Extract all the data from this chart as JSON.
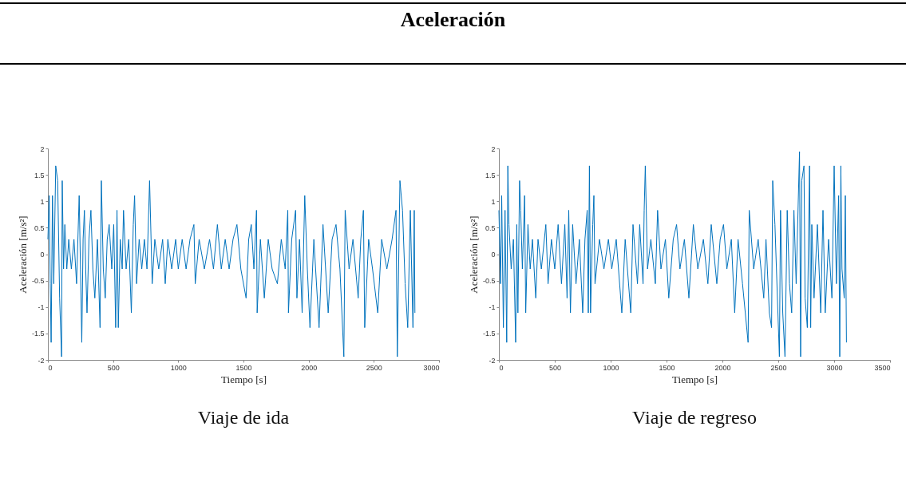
{
  "chart_data": [
    {
      "type": "line",
      "title": "Aceleración",
      "xlabel": "Tiempo [s]",
      "ylabel": "Aceleración [m/s²]",
      "annotations": [
        "Viaje de ida"
      ],
      "xlim": [
        0,
        3000
      ],
      "xticks": [
        0,
        500,
        1000,
        1500,
        2000,
        2500,
        3000
      ],
      "ylim": [
        -2,
        2
      ],
      "yticks": [
        -2,
        -1.5,
        -1,
        -0.5,
        0,
        0.5,
        1,
        1.5,
        2
      ],
      "series": [
        {
          "color": "#0072bd",
          "x": [
            0,
            10,
            18,
            25,
            35,
            45,
            60,
            75,
            90,
            105,
            110,
            120,
            130,
            145,
            160,
            180,
            200,
            220,
            240,
            250,
            260,
            270,
            280,
            290,
            300,
            315,
            330,
            345,
            360,
            380,
            400,
            410,
            425,
            440,
            455,
            470,
            490,
            505,
            520,
            530,
            540,
            555,
            570,
            580,
            600,
            620,
            640,
            655,
            665,
            680,
            700,
            720,
            740,
            760,
            780,
            800,
            820,
            850,
            880,
            900,
            920,
            950,
            980,
            1000,
            1030,
            1060,
            1090,
            1120,
            1130,
            1160,
            1200,
            1240,
            1270,
            1300,
            1330,
            1360,
            1390,
            1420,
            1450,
            1480,
            1520,
            1540,
            1560,
            1580,
            1600,
            1605,
            1630,
            1660,
            1690,
            1720,
            1760,
            1790,
            1820,
            1840,
            1845,
            1870,
            1900,
            1910,
            1930,
            1950,
            1970,
            1990,
            2010,
            2040,
            2080,
            2110,
            2150,
            2180,
            2210,
            2240,
            2270,
            2280,
            2310,
            2340,
            2380,
            2400,
            2420,
            2430,
            2460,
            2490,
            2530,
            2560,
            2600,
            2640,
            2670,
            2680,
            2700,
            2720,
            2740,
            2760,
            2780,
            2800,
            2810,
            2815
          ],
          "values": [
            0.28,
            1.11,
            -0.56,
            -1.67,
            1.11,
            -0.56,
            1.67,
            1.39,
            -0.83,
            -1.94,
            1.39,
            -0.28,
            0.56,
            -0.28,
            0.28,
            -0.28,
            0.28,
            -0.56,
            1.11,
            -0.28,
            -1.67,
            0.28,
            0.83,
            -0.28,
            -1.11,
            0.28,
            0.83,
            -0.28,
            -0.83,
            0.28,
            -1.39,
            1.39,
            -0.28,
            -0.83,
            0.28,
            0.56,
            -0.28,
            0.56,
            -1.39,
            0.83,
            -1.39,
            0.28,
            -0.28,
            0.83,
            -0.28,
            0.28,
            -1.11,
            0.56,
            1.11,
            -0.56,
            0.28,
            -0.28,
            0.28,
            -0.28,
            1.39,
            -0.56,
            0.28,
            -0.28,
            0.28,
            -0.56,
            0.28,
            -0.28,
            0.28,
            -0.28,
            0.28,
            -0.28,
            0.28,
            0.56,
            -0.56,
            0.28,
            -0.28,
            0.28,
            -0.28,
            0.56,
            -0.28,
            0.28,
            -0.28,
            0.28,
            0.56,
            -0.28,
            -0.83,
            0.28,
            0.56,
            -0.28,
            0.83,
            -1.11,
            0.28,
            -0.83,
            0.28,
            -0.28,
            -0.56,
            0.28,
            -0.28,
            0.83,
            -1.11,
            0.28,
            0.83,
            -0.83,
            0.28,
            -1.11,
            1.11,
            -0.28,
            -1.39,
            0.28,
            -1.39,
            0.56,
            -1.11,
            0.28,
            0.56,
            -0.28,
            -1.94,
            0.83,
            -0.28,
            0.28,
            -0.83,
            0.28,
            0.83,
            -1.39,
            0.28,
            -0.28,
            -1.11,
            0.28,
            -0.28,
            0.28,
            0.83,
            -1.94,
            1.39,
            0.83,
            -0.56,
            -1.39,
            0.83,
            -1.39,
            0.83,
            -1.11
          ]
        }
      ]
    },
    {
      "type": "line",
      "xlabel": "Tiempo [s]",
      "ylabel": "Aceleración [m/s²]",
      "annotations": [
        "Viaje de regreso"
      ],
      "xlim": [
        0,
        3500
      ],
      "xticks": [
        0,
        500,
        1000,
        1500,
        2000,
        2500,
        3000,
        3500
      ],
      "ylim": [
        -2,
        2
      ],
      "yticks": [
        -2,
        -1.5,
        -1,
        -0.5,
        0,
        0.5,
        1,
        1.5,
        2
      ],
      "series": [
        {
          "color": "#0072bd",
          "x": [
            0,
            15,
            25,
            40,
            55,
            70,
            80,
            90,
            110,
            130,
            150,
            160,
            170,
            185,
            195,
            210,
            230,
            240,
            260,
            280,
            300,
            330,
            350,
            380,
            420,
            440,
            470,
            500,
            530,
            560,
            590,
            610,
            625,
            640,
            660,
            690,
            720,
            750,
            770,
            790,
            800,
            810,
            820,
            840,
            850,
            860,
            900,
            940,
            980,
            1010,
            1050,
            1100,
            1130,
            1180,
            1200,
            1240,
            1260,
            1290,
            1300,
            1310,
            1330,
            1360,
            1400,
            1420,
            1450,
            1490,
            1520,
            1560,
            1590,
            1620,
            1660,
            1700,
            1740,
            1780,
            1830,
            1870,
            1900,
            1950,
            1980,
            2010,
            2040,
            2080,
            2110,
            2140,
            2180,
            2230,
            2240,
            2280,
            2320,
            2370,
            2390,
            2420,
            2440,
            2450,
            2470,
            2510,
            2520,
            2540,
            2560,
            2580,
            2600,
            2620,
            2640,
            2660,
            2690,
            2700,
            2710,
            2730,
            2740,
            2760,
            2780,
            2790,
            2800,
            2820,
            2850,
            2880,
            2900,
            2920,
            2950,
            2980,
            3000,
            3020,
            3040,
            3050,
            3060,
            3070,
            3090,
            3100,
            3110
          ],
          "values": [
            0.83,
            -0.56,
            1.11,
            -1.39,
            0.83,
            -1.67,
            1.67,
            0.56,
            -0.28,
            0.28,
            -1.67,
            0.56,
            -1.11,
            1.39,
            0.83,
            -0.28,
            1.11,
            -1.11,
            0.56,
            -0.28,
            0.28,
            -0.83,
            0.28,
            -0.28,
            0.56,
            -0.56,
            0.28,
            -0.28,
            0.56,
            -0.56,
            0.56,
            -0.83,
            0.83,
            -1.11,
            0.56,
            -0.56,
            0.28,
            -1.11,
            0.28,
            0.83,
            -1.11,
            1.67,
            -1.11,
            0.56,
            1.11,
            -0.56,
            0.28,
            -0.28,
            0.28,
            -0.28,
            0.28,
            -1.11,
            0.28,
            -1.11,
            0.56,
            -0.56,
            0.56,
            -0.56,
            0.83,
            1.67,
            -0.28,
            0.28,
            -0.56,
            0.83,
            -0.28,
            0.28,
            -0.83,
            0.28,
            0.56,
            -0.28,
            0.28,
            -0.83,
            0.56,
            -0.28,
            0.28,
            -0.56,
            0.56,
            -0.56,
            0.28,
            0.56,
            -0.28,
            0.28,
            -1.11,
            0.28,
            -0.56,
            -1.67,
            0.83,
            -0.28,
            0.28,
            -0.83,
            0.28,
            -1.11,
            -1.39,
            1.39,
            0.56,
            -1.94,
            0.83,
            -1.11,
            -1.94,
            0.83,
            -0.56,
            -1.11,
            0.83,
            -0.56,
            1.94,
            -1.94,
            1.39,
            1.67,
            -0.83,
            -1.39,
            1.67,
            -1.39,
            0.56,
            -0.83,
            0.56,
            -1.11,
            0.83,
            -1.11,
            0.28,
            -0.83,
            1.67,
            -0.56,
            1.11,
            -1.94,
            1.67,
            -0.28,
            -0.83,
            1.11,
            -1.67
          ]
        }
      ]
    }
  ]
}
